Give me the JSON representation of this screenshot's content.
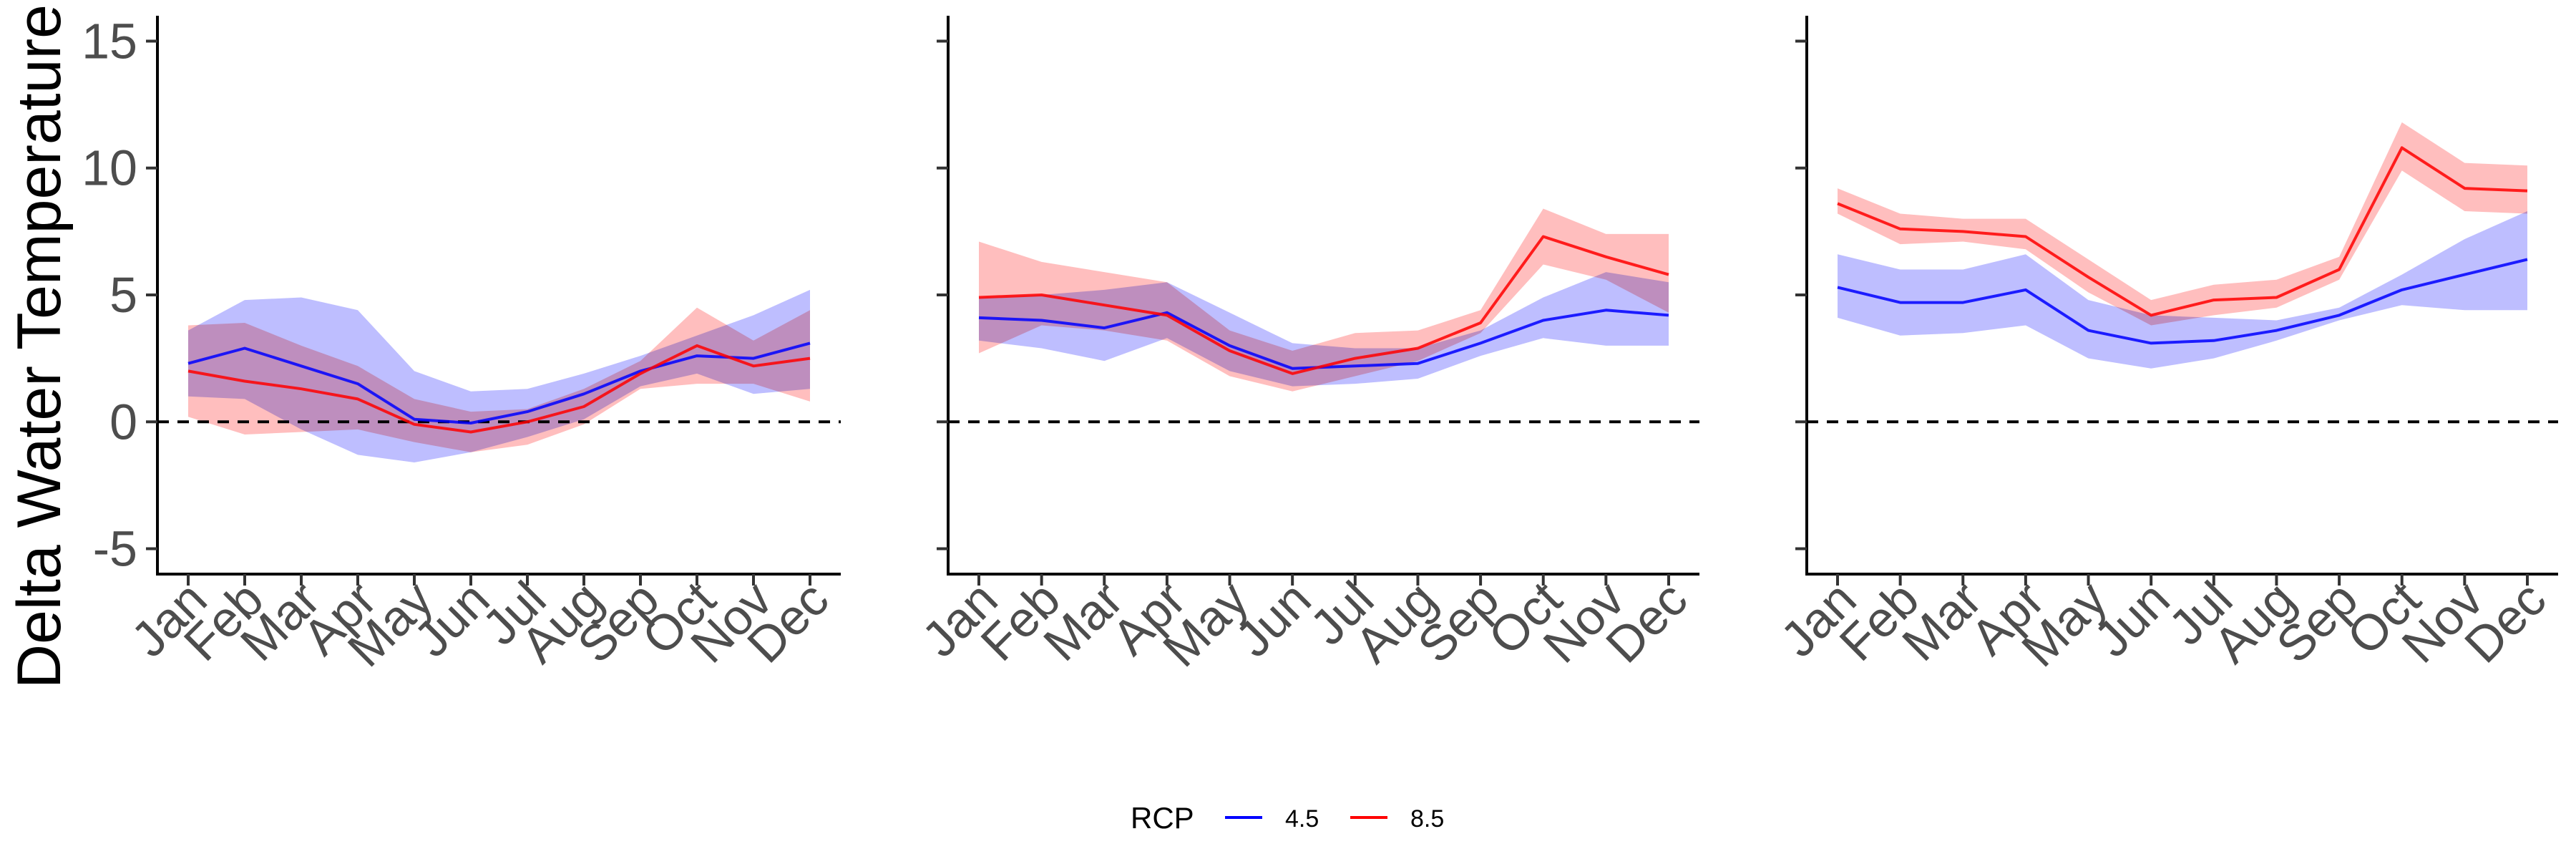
{
  "chart_data": {
    "type": "line",
    "ylabel": "Delta Water Temperature (",
    "categories": [
      "Jan",
      "Feb",
      "Mar",
      "Apr",
      "May",
      "Jun",
      "Jul",
      "Aug",
      "Sep",
      "Oct",
      "Nov",
      "Dec"
    ],
    "ylim": [
      -6,
      16
    ],
    "yticks": [
      15,
      10,
      5,
      0,
      -5
    ],
    "ytick_labels": [
      "15",
      "10",
      "5",
      "0",
      "-5"
    ],
    "reference_line": 0,
    "grid": false,
    "legend": {
      "title": "RCP",
      "position": "bottom",
      "entries": [
        {
          "label": "4.5",
          "color": "#0000ff"
        },
        {
          "label": "8.5",
          "color": "#ff0000"
        }
      ]
    },
    "colors": {
      "rcp45": "#0000ff",
      "rcp85": "#ff0000",
      "rcp45_band": "#b3b3ff",
      "rcp85_band": "#ffb3b3"
    },
    "panels": [
      {
        "series": [
          {
            "name": "4.5",
            "values": [
              2.3,
              2.9,
              2.2,
              1.5,
              0.1,
              -0.05,
              0.4,
              1.1,
              2.0,
              2.6,
              2.5,
              3.1
            ],
            "lower": [
              1.0,
              0.9,
              -0.3,
              -1.3,
              -1.6,
              -1.2,
              -0.6,
              0.1,
              1.4,
              1.9,
              1.1,
              1.3
            ],
            "upper": [
              3.6,
              4.8,
              4.9,
              4.4,
              2.0,
              1.2,
              1.3,
              1.9,
              2.6,
              3.4,
              4.2,
              5.2
            ]
          },
          {
            "name": "8.5",
            "values": [
              2.0,
              1.6,
              1.3,
              0.9,
              -0.1,
              -0.4,
              0.0,
              0.6,
              1.9,
              3.0,
              2.2,
              2.5
            ],
            "lower": [
              0.2,
              -0.5,
              -0.4,
              -0.3,
              -0.8,
              -1.2,
              -0.9,
              -0.1,
              1.3,
              1.5,
              1.5,
              0.8
            ],
            "upper": [
              3.8,
              3.9,
              3.0,
              2.2,
              0.9,
              0.4,
              0.5,
              1.3,
              2.4,
              4.5,
              3.2,
              4.4
            ]
          }
        ]
      },
      {
        "series": [
          {
            "name": "4.5",
            "values": [
              4.1,
              4.0,
              3.7,
              4.3,
              3.0,
              2.1,
              2.2,
              2.3,
              3.1,
              4.0,
              4.4,
              4.2
            ],
            "lower": [
              3.2,
              2.9,
              2.4,
              3.3,
              2.0,
              1.4,
              1.5,
              1.7,
              2.6,
              3.3,
              3.0,
              3.0
            ],
            "upper": [
              4.9,
              5.0,
              5.2,
              5.5,
              4.3,
              3.1,
              2.9,
              2.9,
              3.6,
              4.9,
              5.9,
              5.5
            ]
          },
          {
            "name": "8.5",
            "values": [
              4.9,
              5.0,
              4.6,
              4.2,
              2.8,
              1.9,
              2.5,
              2.9,
              3.9,
              7.3,
              6.5,
              5.8
            ],
            "lower": [
              2.7,
              3.8,
              3.6,
              3.2,
              1.8,
              1.2,
              1.8,
              2.4,
              3.5,
              6.2,
              5.6,
              4.3
            ],
            "upper": [
              7.1,
              6.3,
              5.9,
              5.5,
              3.6,
              2.8,
              3.5,
              3.6,
              4.4,
              8.4,
              7.4,
              7.4
            ]
          }
        ]
      },
      {
        "series": [
          {
            "name": "4.5",
            "values": [
              5.3,
              4.7,
              4.7,
              5.2,
              3.6,
              3.1,
              3.2,
              3.6,
              4.2,
              5.2,
              5.8,
              6.4
            ],
            "lower": [
              4.1,
              3.4,
              3.5,
              3.8,
              2.5,
              2.1,
              2.5,
              3.2,
              4.0,
              4.6,
              4.4,
              4.4
            ],
            "upper": [
              6.6,
              6.0,
              6.0,
              6.6,
              4.8,
              4.2,
              4.1,
              4.0,
              4.5,
              5.8,
              7.2,
              8.3
            ]
          },
          {
            "name": "8.5",
            "values": [
              8.6,
              7.6,
              7.5,
              7.3,
              5.7,
              4.2,
              4.8,
              4.9,
              6.0,
              10.8,
              9.2,
              9.1
            ],
            "lower": [
              8.2,
              7.0,
              7.1,
              6.8,
              5.1,
              3.8,
              4.2,
              4.5,
              5.6,
              9.9,
              8.3,
              8.2
            ],
            "upper": [
              9.2,
              8.2,
              8.0,
              8.0,
              6.4,
              4.8,
              5.4,
              5.6,
              6.5,
              11.8,
              10.2,
              10.1
            ]
          }
        ]
      }
    ]
  }
}
